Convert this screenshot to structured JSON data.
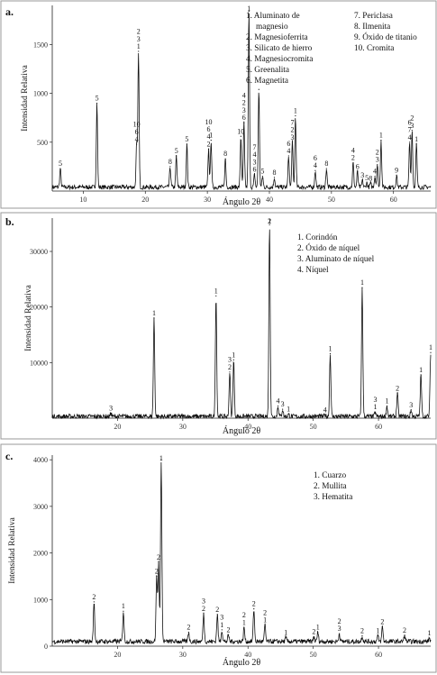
{
  "chart_data": [
    {
      "type": "line",
      "panel_label": "a.",
      "xlabel": "Ángulo 2θ",
      "ylabel": "Intensidad Relativa",
      "xlim": [
        5,
        66
      ],
      "ylim": [
        0,
        1900
      ],
      "xticks": [
        10,
        20,
        30,
        40,
        50,
        60
      ],
      "yticks": [
        500,
        1000,
        1500
      ],
      "baseline": 40,
      "legend": {
        "placement": "top-right",
        "columns": [
          [
            "1. Aluminato de",
            "magnesio",
            "2. Magnesioferrita",
            "3. Silicato de hierro",
            "4. Magnesiocromita",
            "5. Greenalita",
            "6. Magnetita"
          ],
          [
            "7. Periclasa",
            "8. Ilmenita",
            "9. Óxido de titanio",
            "10. Cromita"
          ]
        ]
      },
      "peaks": [
        {
          "x": 6.3,
          "y": 230,
          "labels": [
            "5"
          ]
        },
        {
          "x": 12.2,
          "y": 900,
          "labels": [
            "5"
          ]
        },
        {
          "x": 18.6,
          "y": 480,
          "labels": [
            "10",
            "6",
            "4"
          ]
        },
        {
          "x": 18.9,
          "y": 1430,
          "labels": [
            "2",
            "3",
            "1"
          ]
        },
        {
          "x": 24.0,
          "y": 250,
          "labels": [
            "8"
          ]
        },
        {
          "x": 25.0,
          "y": 360,
          "labels": [
            "5"
          ]
        },
        {
          "x": 26.7,
          "y": 480,
          "labels": [
            "5"
          ]
        },
        {
          "x": 30.2,
          "y": 430,
          "labels": [
            "10",
            "6",
            "4",
            "2"
          ]
        },
        {
          "x": 30.6,
          "y": 520,
          "labels": [
            "1"
          ]
        },
        {
          "x": 32.9,
          "y": 330,
          "labels": [
            "8"
          ]
        },
        {
          "x": 35.4,
          "y": 560,
          "labels": [
            "10"
          ]
        },
        {
          "x": 35.9,
          "y": 700,
          "labels": [
            "4",
            "2",
            "3",
            "6"
          ]
        },
        {
          "x": 36.7,
          "y": 1840,
          "labels": [
            "1"
          ]
        },
        {
          "x": 37.6,
          "y": 170,
          "labels": [
            "7",
            "4",
            "3",
            "6"
          ]
        },
        {
          "x": 38.3,
          "y": 1040,
          "labels": []
        },
        {
          "x": 38.9,
          "y": 150,
          "labels": [
            "5"
          ]
        },
        {
          "x": 40.8,
          "y": 140,
          "labels": [
            "8"
          ]
        },
        {
          "x": 43.1,
          "y": 360,
          "labels": [
            "6",
            "4"
          ]
        },
        {
          "x": 43.7,
          "y": 500,
          "labels": [
            "7",
            "2",
            "3"
          ]
        },
        {
          "x": 44.2,
          "y": 770,
          "labels": [
            "1"
          ]
        },
        {
          "x": 47.4,
          "y": 210,
          "labels": [
            "6",
            "4"
          ]
        },
        {
          "x": 49.2,
          "y": 230,
          "labels": [
            "8"
          ]
        },
        {
          "x": 53.5,
          "y": 290,
          "labels": [
            "4",
            "2"
          ]
        },
        {
          "x": 54.2,
          "y": 200,
          "labels": [
            "6"
          ]
        },
        {
          "x": 55.0,
          "y": 110,
          "labels": [
            "3"
          ]
        },
        {
          "x": 55.7,
          "y": 85,
          "labels": [
            "5"
          ]
        },
        {
          "x": 56.3,
          "y": 80,
          "labels": [
            "8"
          ]
        },
        {
          "x": 57.0,
          "y": 150,
          "labels": [
            "4"
          ]
        },
        {
          "x": 57.4,
          "y": 270,
          "labels": [
            "2",
            "3"
          ]
        },
        {
          "x": 58.0,
          "y": 520,
          "labels": [
            "1"
          ]
        },
        {
          "x": 60.5,
          "y": 160,
          "labels": [
            "9"
          ]
        },
        {
          "x": 62.6,
          "y": 500,
          "labels": [
            "6",
            "7",
            "4"
          ]
        },
        {
          "x": 63.0,
          "y": 620,
          "labels": [
            "2",
            "3"
          ]
        },
        {
          "x": 63.7,
          "y": 480,
          "labels": [
            "1"
          ]
        }
      ]
    },
    {
      "type": "line",
      "panel_label": "b.",
      "xlabel": "Ángulo 2θ",
      "ylabel": "Intensidad Relativa",
      "xlim": [
        10,
        68
      ],
      "ylim": [
        0,
        36000
      ],
      "xticks": [
        20,
        30,
        40,
        50,
        60
      ],
      "yticks": [
        10000,
        20000,
        30000
      ],
      "baseline": 300,
      "legend": {
        "placement": "top-right",
        "columns": [
          [
            "1. Corindón",
            "2. Óxido de níquel",
            "3. Aluminato de níquel",
            "4. Níquel"
          ]
        ]
      },
      "peaks": [
        {
          "x": 19.0,
          "y": 900,
          "labels": [
            "3"
          ]
        },
        {
          "x": 25.6,
          "y": 18000,
          "labels": [
            "1"
          ]
        },
        {
          "x": 35.1,
          "y": 22000,
          "labels": [
            "1"
          ]
        },
        {
          "x": 37.2,
          "y": 8300,
          "labels": [
            "3",
            "2"
          ]
        },
        {
          "x": 37.8,
          "y": 10500,
          "labels": [
            "1"
          ]
        },
        {
          "x": 43.3,
          "y": 34800,
          "labels": [
            "2",
            "1"
          ]
        },
        {
          "x": 44.6,
          "y": 2200,
          "labels": [
            "4"
          ]
        },
        {
          "x": 45.3,
          "y": 1600,
          "labels": [
            "3"
          ]
        },
        {
          "x": 46.2,
          "y": 700,
          "labels": [
            "1"
          ]
        },
        {
          "x": 51.8,
          "y": 600,
          "labels": [
            "4"
          ]
        },
        {
          "x": 52.6,
          "y": 11600,
          "labels": [
            "1"
          ]
        },
        {
          "x": 57.5,
          "y": 23500,
          "labels": [
            "1"
          ]
        },
        {
          "x": 59.5,
          "y": 1100,
          "labels": [
            "3",
            "1"
          ]
        },
        {
          "x": 61.3,
          "y": 2200,
          "labels": [
            "1"
          ]
        },
        {
          "x": 62.9,
          "y": 4500,
          "labels": [
            "2"
          ]
        },
        {
          "x": 65.0,
          "y": 1500,
          "labels": [
            "3"
          ]
        },
        {
          "x": 66.5,
          "y": 7800,
          "labels": [
            "1"
          ]
        },
        {
          "x": 68.0,
          "y": 11800,
          "labels": [
            "1"
          ]
        }
      ]
    },
    {
      "type": "line",
      "panel_label": "c.",
      "xlabel": "Ángulo 2θ",
      "ylabel": "Intensidad Relativa",
      "xlim": [
        10,
        68
      ],
      "ylim": [
        0,
        4100
      ],
      "xticks": [
        20,
        30,
        40,
        50,
        60
      ],
      "yticks": [
        0,
        1000,
        2000,
        3000,
        4000
      ],
      "baseline": 100,
      "legend": {
        "placement": "top-right",
        "columns": [
          [
            "1. Cuarzo",
            "2. Mullita",
            "3. Hematita"
          ]
        ]
      },
      "peaks": [
        {
          "x": 16.4,
          "y": 950,
          "labels": [
            "2"
          ]
        },
        {
          "x": 20.9,
          "y": 750,
          "labels": [
            "1"
          ]
        },
        {
          "x": 26.0,
          "y": 1500,
          "labels": [
            "2"
          ]
        },
        {
          "x": 26.3,
          "y": 1800,
          "labels": [
            "2"
          ]
        },
        {
          "x": 26.7,
          "y": 4000,
          "labels": [
            "1"
          ]
        },
        {
          "x": 30.9,
          "y": 300,
          "labels": [
            "2"
          ]
        },
        {
          "x": 33.2,
          "y": 700,
          "labels": [
            "3",
            "2"
          ]
        },
        {
          "x": 35.3,
          "y": 680,
          "labels": [
            "2"
          ]
        },
        {
          "x": 36.0,
          "y": 350,
          "labels": [
            "3",
            "1"
          ]
        },
        {
          "x": 37.0,
          "y": 240,
          "labels": [
            "2"
          ]
        },
        {
          "x": 39.4,
          "y": 400,
          "labels": [
            "2",
            "1"
          ]
        },
        {
          "x": 40.9,
          "y": 800,
          "labels": [
            "2"
          ]
        },
        {
          "x": 42.6,
          "y": 450,
          "labels": [
            "2",
            "1"
          ]
        },
        {
          "x": 45.8,
          "y": 180,
          "labels": [
            "1"
          ]
        },
        {
          "x": 50.1,
          "y": 200,
          "labels": [
            "2"
          ]
        },
        {
          "x": 50.7,
          "y": 300,
          "labels": [
            "1"
          ]
        },
        {
          "x": 54.0,
          "y": 270,
          "labels": [
            "2",
            "3"
          ]
        },
        {
          "x": 57.5,
          "y": 220,
          "labels": [
            "2"
          ]
        },
        {
          "x": 59.9,
          "y": 220,
          "labels": [
            "1"
          ]
        },
        {
          "x": 60.6,
          "y": 420,
          "labels": [
            "2"
          ]
        },
        {
          "x": 64.0,
          "y": 230,
          "labels": [
            "2"
          ]
        },
        {
          "x": 67.8,
          "y": 170,
          "labels": [
            "1"
          ]
        }
      ]
    }
  ]
}
